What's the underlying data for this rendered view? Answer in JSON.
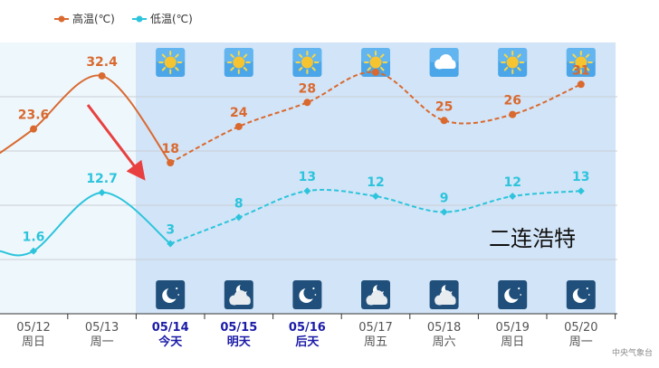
{
  "chart_data": {
    "type": "line",
    "categories": [
      "05/12",
      "05/13",
      "05/14",
      "05/15",
      "05/16",
      "05/17",
      "05/18",
      "05/19",
      "05/20"
    ],
    "weekdays": [
      "周日",
      "周一",
      "今天",
      "明天",
      "后天",
      "周五",
      "周六",
      "周日",
      "周一"
    ],
    "highlighted_dates": [
      "05/14",
      "05/15",
      "05/16"
    ],
    "forecast_from": "05/14",
    "series": [
      {
        "name": "高温(℃)",
        "color": "#d9692f",
        "values": [
          23.6,
          32.4,
          18,
          24,
          28,
          33,
          25,
          26,
          31
        ],
        "labels": [
          "23.6",
          "32.4",
          "18",
          "24",
          "28",
          "",
          "25",
          "26",
          "31"
        ]
      },
      {
        "name": "低温(℃)",
        "color": "#2cc4dc",
        "values": [
          1.6,
          12.7,
          3,
          8,
          13,
          12,
          9,
          12,
          13
        ],
        "labels": [
          "1.6",
          "12.7",
          "3",
          "8",
          "13",
          "12",
          "9",
          "12",
          "13"
        ]
      }
    ],
    "day_icons": [
      "sun-icon",
      "sun-icon",
      "sun-icon",
      "sun-icon",
      "cloud-icon",
      "sun-icon",
      "sun-icon"
    ],
    "night_icons": [
      "moon-icon",
      "partly-cloudy-night-icon",
      "moon-icon",
      "partly-cloudy-night-icon",
      "partly-cloudy-night-icon",
      "moon-icon",
      "moon-icon"
    ],
    "legend_position": "top-left",
    "grid": true
  },
  "annotation": {
    "text": "二连浩特",
    "arrow_color": "#e84040"
  },
  "credit": "中央气象台",
  "colors": {
    "forecast_bg": "#d2e4f7",
    "past_bg": "#eef7fc",
    "grid": "#c9ced6",
    "axis": "#333333"
  }
}
